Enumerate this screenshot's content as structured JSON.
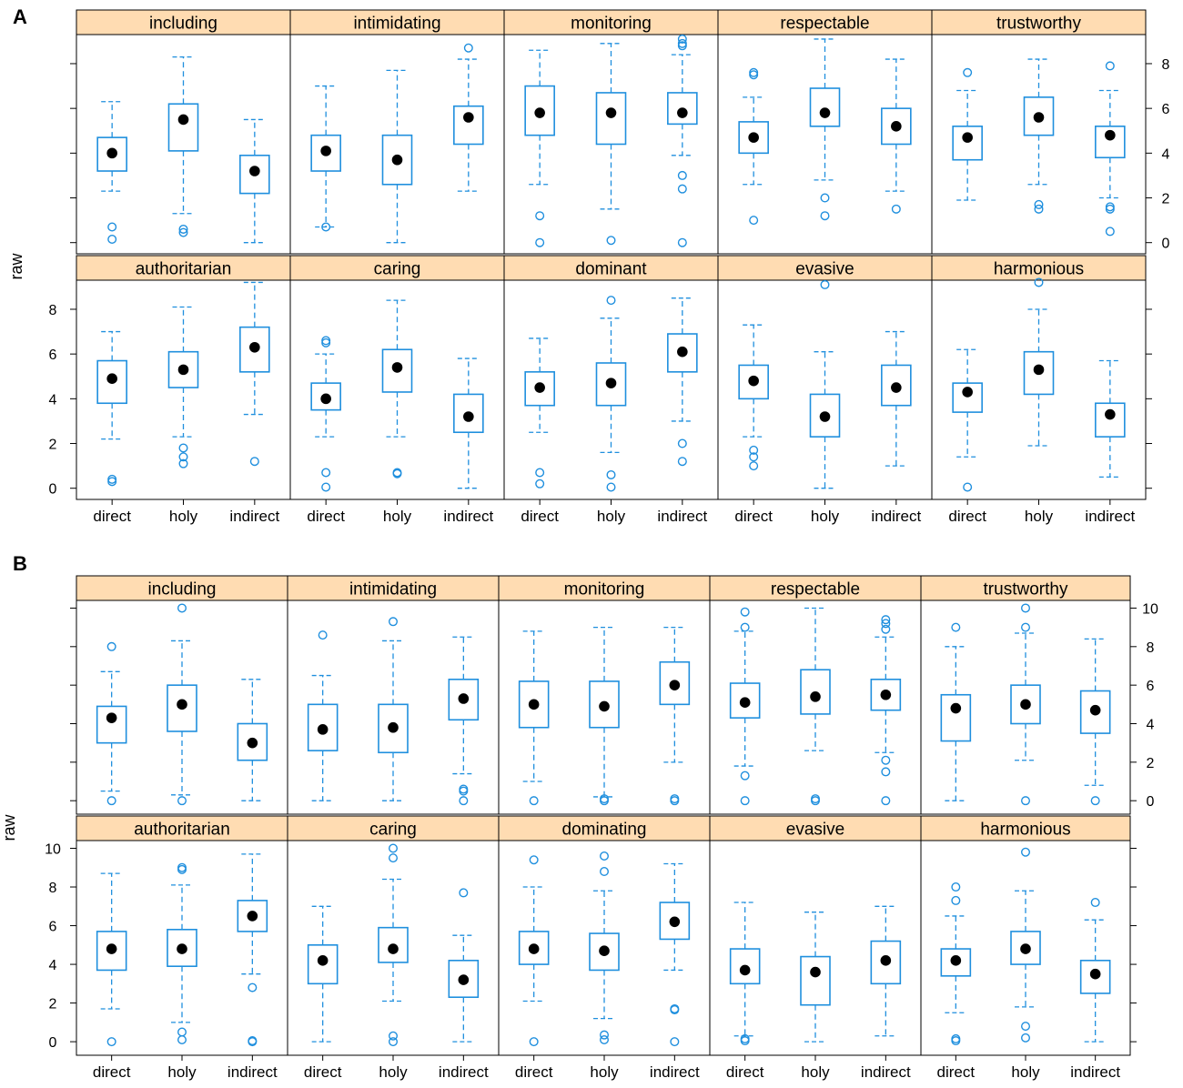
{
  "colors": {
    "box": "#1f8fde",
    "strip_fill": "#ffdcb2",
    "frame": "#000000",
    "median": "#000000"
  },
  "chart_data": [
    {
      "type": "boxplot",
      "panel_label": "A",
      "ylabel": "raw",
      "categories": [
        "direct",
        "holy",
        "indirect"
      ],
      "y_ticks": [
        "0",
        "2",
        "4",
        "6",
        "8"
      ],
      "ylim": [
        -0.5,
        9.3
      ],
      "layout": "5 columns x 2 rows",
      "facets": [
        {
          "name": "including",
          "groups": [
            {
              "cat": "direct",
              "median": 4.0,
              "q1": 3.2,
              "q3": 4.7,
              "lw": 2.3,
              "uw": 6.3,
              "outliers": [
                0.7,
                0.15
              ]
            },
            {
              "cat": "holy",
              "median": 5.5,
              "q1": 4.1,
              "q3": 6.2,
              "lw": 1.3,
              "uw": 8.3,
              "outliers": [
                0.6,
                0.45
              ]
            },
            {
              "cat": "indirect",
              "median": 3.2,
              "q1": 2.2,
              "q3": 3.9,
              "lw": 0.0,
              "uw": 5.5,
              "outliers": []
            }
          ]
        },
        {
          "name": "intimidating",
          "groups": [
            {
              "cat": "direct",
              "median": 4.1,
              "q1": 3.2,
              "q3": 4.8,
              "lw": 0.7,
              "uw": 7.0,
              "outliers": [
                0.7
              ]
            },
            {
              "cat": "holy",
              "median": 3.7,
              "q1": 2.6,
              "q3": 4.8,
              "lw": 0.0,
              "uw": 7.7,
              "outliers": []
            },
            {
              "cat": "indirect",
              "median": 5.6,
              "q1": 4.4,
              "q3": 6.1,
              "lw": 2.3,
              "uw": 8.2,
              "outliers": [
                8.7
              ]
            }
          ]
        },
        {
          "name": "monitoring",
          "groups": [
            {
              "cat": "direct",
              "median": 5.8,
              "q1": 4.8,
              "q3": 7.0,
              "lw": 2.6,
              "uw": 8.6,
              "outliers": [
                1.2,
                0.0
              ]
            },
            {
              "cat": "holy",
              "median": 5.8,
              "q1": 4.4,
              "q3": 6.7,
              "lw": 1.5,
              "uw": 8.9,
              "outliers": [
                0.1
              ]
            },
            {
              "cat": "indirect",
              "median": 5.8,
              "q1": 5.3,
              "q3": 6.7,
              "lw": 3.9,
              "uw": 8.4,
              "outliers": [
                9.1,
                8.9,
                8.8,
                3.0,
                2.4,
                0.0
              ]
            }
          ]
        },
        {
          "name": "respectable",
          "groups": [
            {
              "cat": "direct",
              "median": 4.7,
              "q1": 4.0,
              "q3": 5.4,
              "lw": 2.6,
              "uw": 6.5,
              "outliers": [
                7.6,
                7.5,
                1.0
              ]
            },
            {
              "cat": "holy",
              "median": 5.8,
              "q1": 5.2,
              "q3": 6.9,
              "lw": 2.8,
              "uw": 9.1,
              "outliers": [
                2.0,
                1.2
              ]
            },
            {
              "cat": "indirect",
              "median": 5.2,
              "q1": 4.4,
              "q3": 6.0,
              "lw": 2.3,
              "uw": 8.2,
              "outliers": [
                1.5
              ]
            }
          ]
        },
        {
          "name": "trustworthy",
          "groups": [
            {
              "cat": "direct",
              "median": 4.7,
              "q1": 3.7,
              "q3": 5.2,
              "lw": 1.9,
              "uw": 6.8,
              "outliers": [
                7.6
              ]
            },
            {
              "cat": "holy",
              "median": 5.6,
              "q1": 4.8,
              "q3": 6.5,
              "lw": 2.6,
              "uw": 8.2,
              "outliers": [
                1.7,
                1.5
              ]
            },
            {
              "cat": "indirect",
              "median": 4.8,
              "q1": 3.8,
              "q3": 5.2,
              "lw": 2.0,
              "uw": 6.8,
              "outliers": [
                7.9,
                1.6,
                1.5,
                0.5
              ]
            }
          ]
        },
        {
          "name": "authoritarian",
          "groups": [
            {
              "cat": "direct",
              "median": 4.9,
              "q1": 3.8,
              "q3": 5.7,
              "lw": 2.2,
              "uw": 7.0,
              "outliers": [
                0.4,
                0.3
              ]
            },
            {
              "cat": "holy",
              "median": 5.3,
              "q1": 4.5,
              "q3": 6.1,
              "lw": 2.3,
              "uw": 8.1,
              "outliers": [
                1.8,
                1.4,
                1.1
              ]
            },
            {
              "cat": "indirect",
              "median": 6.3,
              "q1": 5.2,
              "q3": 7.2,
              "lw": 3.3,
              "uw": 9.2,
              "outliers": [
                1.2
              ]
            }
          ]
        },
        {
          "name": "caring",
          "groups": [
            {
              "cat": "direct",
              "median": 4.0,
              "q1": 3.5,
              "q3": 4.7,
              "lw": 2.3,
              "uw": 6.0,
              "outliers": [
                6.6,
                6.5,
                0.7,
                0.05
              ]
            },
            {
              "cat": "holy",
              "median": 5.4,
              "q1": 4.3,
              "q3": 6.2,
              "lw": 2.3,
              "uw": 8.4,
              "outliers": [
                0.7,
                0.65
              ]
            },
            {
              "cat": "indirect",
              "median": 3.2,
              "q1": 2.5,
              "q3": 4.2,
              "lw": 0.0,
              "uw": 5.8,
              "outliers": []
            }
          ]
        },
        {
          "name": "dominant",
          "groups": [
            {
              "cat": "direct",
              "median": 4.5,
              "q1": 3.7,
              "q3": 5.2,
              "lw": 2.5,
              "uw": 6.7,
              "outliers": [
                0.7,
                0.2
              ]
            },
            {
              "cat": "holy",
              "median": 4.7,
              "q1": 3.7,
              "q3": 5.6,
              "lw": 1.6,
              "uw": 7.6,
              "outliers": [
                8.4,
                0.6,
                0.05
              ]
            },
            {
              "cat": "indirect",
              "median": 6.1,
              "q1": 5.2,
              "q3": 6.9,
              "lw": 3.0,
              "uw": 8.5,
              "outliers": [
                2.0,
                1.2
              ]
            }
          ]
        },
        {
          "name": "evasive",
          "groups": [
            {
              "cat": "direct",
              "median": 4.8,
              "q1": 4.0,
              "q3": 5.5,
              "lw": 2.3,
              "uw": 7.3,
              "outliers": [
                1.7,
                1.4,
                1.0
              ]
            },
            {
              "cat": "holy",
              "median": 3.2,
              "q1": 2.3,
              "q3": 4.2,
              "lw": 0.0,
              "uw": 6.1,
              "outliers": [
                9.1
              ]
            },
            {
              "cat": "indirect",
              "median": 4.5,
              "q1": 3.7,
              "q3": 5.5,
              "lw": 1.0,
              "uw": 7.0,
              "outliers": []
            }
          ]
        },
        {
          "name": "harmonious",
          "groups": [
            {
              "cat": "direct",
              "median": 4.3,
              "q1": 3.4,
              "q3": 4.7,
              "lw": 1.4,
              "uw": 6.2,
              "outliers": [
                0.05
              ]
            },
            {
              "cat": "holy",
              "median": 5.3,
              "q1": 4.2,
              "q3": 6.1,
              "lw": 1.9,
              "uw": 8.0,
              "outliers": [
                9.2
              ]
            },
            {
              "cat": "indirect",
              "median": 3.3,
              "q1": 2.3,
              "q3": 3.8,
              "lw": 0.5,
              "uw": 5.7,
              "outliers": []
            }
          ]
        }
      ]
    },
    {
      "type": "boxplot",
      "panel_label": "B",
      "ylabel": "raw",
      "categories": [
        "direct",
        "holy",
        "indirect"
      ],
      "y_ticks": [
        "0",
        "2",
        "4",
        "6",
        "8",
        "10"
      ],
      "ylim": [
        -0.7,
        10.4
      ],
      "layout": "5 columns x 2 rows",
      "facets": [
        {
          "name": "including",
          "groups": [
            {
              "cat": "direct",
              "median": 4.3,
              "q1": 3.0,
              "q3": 4.9,
              "lw": 0.5,
              "uw": 6.7,
              "outliers": [
                8.0,
                0.0
              ]
            },
            {
              "cat": "holy",
              "median": 5.0,
              "q1": 3.6,
              "q3": 6.0,
              "lw": 0.3,
              "uw": 8.3,
              "outliers": [
                10.0,
                0.0
              ]
            },
            {
              "cat": "indirect",
              "median": 3.0,
              "q1": 2.1,
              "q3": 4.0,
              "lw": 0.0,
              "uw": 6.3,
              "outliers": []
            }
          ]
        },
        {
          "name": "intimidating",
          "groups": [
            {
              "cat": "direct",
              "median": 3.7,
              "q1": 2.6,
              "q3": 5.0,
              "lw": 0.0,
              "uw": 6.5,
              "outliers": [
                8.6
              ]
            },
            {
              "cat": "holy",
              "median": 3.8,
              "q1": 2.5,
              "q3": 5.0,
              "lw": 0.0,
              "uw": 8.3,
              "outliers": [
                9.3
              ]
            },
            {
              "cat": "indirect",
              "median": 5.3,
              "q1": 4.2,
              "q3": 6.3,
              "lw": 1.4,
              "uw": 8.5,
              "outliers": [
                0.6,
                0.5,
                0.0
              ]
            }
          ]
        },
        {
          "name": "monitoring",
          "groups": [
            {
              "cat": "direct",
              "median": 5.0,
              "q1": 3.8,
              "q3": 6.2,
              "lw": 1.0,
              "uw": 8.8,
              "outliers": [
                0.0
              ]
            },
            {
              "cat": "holy",
              "median": 4.9,
              "q1": 3.8,
              "q3": 6.2,
              "lw": 0.2,
              "uw": 9.0,
              "outliers": [
                0.1,
                0.0
              ]
            },
            {
              "cat": "indirect",
              "median": 6.0,
              "q1": 5.0,
              "q3": 7.2,
              "lw": 2.0,
              "uw": 9.0,
              "outliers": [
                0.1,
                0.0
              ]
            }
          ]
        },
        {
          "name": "respectable",
          "groups": [
            {
              "cat": "direct",
              "median": 5.1,
              "q1": 4.3,
              "q3": 6.1,
              "lw": 1.8,
              "uw": 8.8,
              "outliers": [
                9.8,
                9.0,
                1.3,
                0.0
              ]
            },
            {
              "cat": "holy",
              "median": 5.4,
              "q1": 4.5,
              "q3": 6.8,
              "lw": 2.6,
              "uw": 10.0,
              "outliers": [
                0.1,
                0.0
              ]
            },
            {
              "cat": "indirect",
              "median": 5.5,
              "q1": 4.7,
              "q3": 6.3,
              "lw": 2.5,
              "uw": 8.5,
              "outliers": [
                9.4,
                9.2,
                8.9,
                2.1,
                1.5,
                0.0
              ]
            }
          ]
        },
        {
          "name": "trustworthy",
          "groups": [
            {
              "cat": "direct",
              "median": 4.8,
              "q1": 3.1,
              "q3": 5.5,
              "lw": 0.0,
              "uw": 8.0,
              "outliers": [
                9.0
              ]
            },
            {
              "cat": "holy",
              "median": 5.0,
              "q1": 4.0,
              "q3": 6.0,
              "lw": 2.1,
              "uw": 8.7,
              "outliers": [
                10.0,
                9.0,
                0.0
              ]
            },
            {
              "cat": "indirect",
              "median": 4.7,
              "q1": 3.5,
              "q3": 5.7,
              "lw": 0.8,
              "uw": 8.4,
              "outliers": [
                0.0
              ]
            }
          ]
        },
        {
          "name": "authoritarian",
          "groups": [
            {
              "cat": "direct",
              "median": 4.8,
              "q1": 3.7,
              "q3": 5.7,
              "lw": 1.7,
              "uw": 8.7,
              "outliers": [
                0.0
              ]
            },
            {
              "cat": "holy",
              "median": 4.8,
              "q1": 3.9,
              "q3": 5.8,
              "lw": 1.0,
              "uw": 8.1,
              "outliers": [
                8.9,
                9.0,
                0.5,
                0.1
              ]
            },
            {
              "cat": "indirect",
              "median": 6.5,
              "q1": 5.7,
              "q3": 7.3,
              "lw": 3.5,
              "uw": 9.7,
              "outliers": [
                2.8,
                0.05,
                0.0
              ]
            }
          ]
        },
        {
          "name": "caring",
          "groups": [
            {
              "cat": "direct",
              "median": 4.2,
              "q1": 3.0,
              "q3": 5.0,
              "lw": 0.0,
              "uw": 7.0,
              "outliers": []
            },
            {
              "cat": "holy",
              "median": 4.8,
              "q1": 4.1,
              "q3": 5.9,
              "lw": 2.1,
              "uw": 8.4,
              "outliers": [
                10.0,
                9.5,
                0.3,
                0.0
              ]
            },
            {
              "cat": "indirect",
              "median": 3.2,
              "q1": 2.3,
              "q3": 4.2,
              "lw": 0.0,
              "uw": 5.5,
              "outliers": [
                7.7
              ]
            }
          ]
        },
        {
          "name": "dominating",
          "groups": [
            {
              "cat": "direct",
              "median": 4.8,
              "q1": 4.0,
              "q3": 5.7,
              "lw": 2.1,
              "uw": 8.0,
              "outliers": [
                9.4,
                0.0
              ]
            },
            {
              "cat": "holy",
              "median": 4.7,
              "q1": 3.7,
              "q3": 5.6,
              "lw": 1.2,
              "uw": 7.8,
              "outliers": [
                9.6,
                8.8,
                0.35,
                0.1
              ]
            },
            {
              "cat": "indirect",
              "median": 6.2,
              "q1": 5.3,
              "q3": 7.2,
              "lw": 3.7,
              "uw": 9.2,
              "outliers": [
                1.7,
                1.65,
                0.0
              ]
            }
          ]
        },
        {
          "name": "evasive",
          "groups": [
            {
              "cat": "direct",
              "median": 3.7,
              "q1": 3.0,
              "q3": 4.8,
              "lw": 0.3,
              "uw": 7.2,
              "outliers": [
                0.15,
                0.05
              ]
            },
            {
              "cat": "holy",
              "median": 3.6,
              "q1": 1.9,
              "q3": 4.4,
              "lw": 0.0,
              "uw": 6.7,
              "outliers": []
            },
            {
              "cat": "indirect",
              "median": 4.2,
              "q1": 3.0,
              "q3": 5.2,
              "lw": 0.3,
              "uw": 7.0,
              "outliers": []
            }
          ]
        },
        {
          "name": "harmonious",
          "groups": [
            {
              "cat": "direct",
              "median": 4.2,
              "q1": 3.4,
              "q3": 4.8,
              "lw": 1.5,
              "uw": 6.5,
              "outliers": [
                8.0,
                7.3,
                0.15,
                0.05
              ]
            },
            {
              "cat": "holy",
              "median": 4.8,
              "q1": 4.0,
              "q3": 5.7,
              "lw": 1.8,
              "uw": 7.8,
              "outliers": [
                9.8,
                0.8,
                0.2
              ]
            },
            {
              "cat": "indirect",
              "median": 3.5,
              "q1": 2.5,
              "q3": 4.2,
              "lw": 0.0,
              "uw": 6.3,
              "outliers": [
                7.2
              ]
            }
          ]
        }
      ]
    }
  ]
}
